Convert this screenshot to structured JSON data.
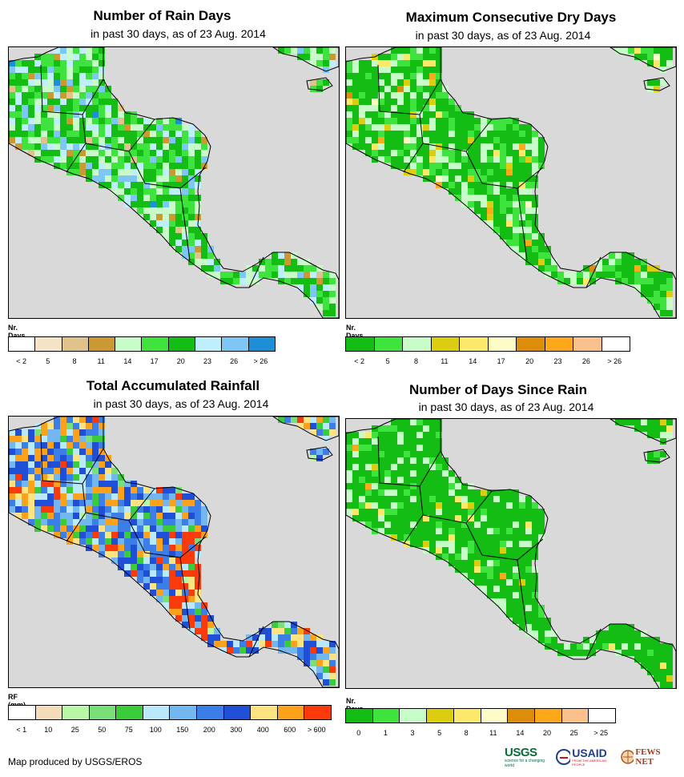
{
  "panels": [
    {
      "title": "Number of Rain Days",
      "subtitle": "in past 30 days, as of 23 Aug. 2014",
      "legend_title": "Nr. Days",
      "legend_colors": [
        "#ffffff",
        "#f5e3c6",
        "#dfc28c",
        "#c99a34",
        "#c7fbc7",
        "#3ee33e",
        "#13bd13",
        "#bfefff",
        "#7ec6f5",
        "#1c8fd6"
      ],
      "ticks": [
        "< 2",
        "5",
        "8",
        "11",
        "14",
        "17",
        "20",
        "23",
        "26",
        "> 26"
      ]
    },
    {
      "title": "Maximum Consecutive Dry Days",
      "subtitle": "in past 30 days, as of 23 Aug. 2014",
      "legend_title": "Nr. Days",
      "legend_colors": [
        "#13bd13",
        "#3ee33e",
        "#c7fbc7",
        "#ddcd10",
        "#fce96a",
        "#fdfbc6",
        "#dc8e0a",
        "#fda71a",
        "#fcc08c",
        "#ffffff"
      ],
      "ticks": [
        "< 2",
        "5",
        "8",
        "11",
        "14",
        "17",
        "20",
        "23",
        "26",
        "> 26"
      ]
    },
    {
      "title": "Total Accumulated Rainfall",
      "subtitle": "in past 30 days, as of 23 Aug. 2014",
      "legend_title": "RF (mm)",
      "legend_colors": [
        "#ffffff",
        "#f5dcb8",
        "#b7f7a6",
        "#78e077",
        "#3bcc3b",
        "#b9e9fb",
        "#72b7f0",
        "#3c7ee8",
        "#1f4fd6",
        "#fde480",
        "#fba21a",
        "#fa3a0a"
      ],
      "ticks": [
        "< 1",
        "10",
        "25",
        "50",
        "75",
        "100",
        "150",
        "200",
        "300",
        "400",
        "600",
        "> 600"
      ]
    },
    {
      "title": "Number of Days Since Rain",
      "subtitle": "in past 30 days, as of 23 Aug. 2014",
      "legend_title": "Nr. Days",
      "legend_colors": [
        "#13bd13",
        "#3ee33e",
        "#c7fbc7",
        "#ddcd10",
        "#fce96a",
        "#fdfbc6",
        "#dc8e0a",
        "#fda71a",
        "#fcc08c",
        "#ffffff"
      ],
      "ticks": [
        "0",
        "1",
        "3",
        "5",
        "8",
        "11",
        "14",
        "20",
        "25",
        "> 25"
      ]
    }
  ],
  "credit": "Map produced by USGS/EROS",
  "logos": {
    "usgs": "USGS",
    "usgs_tagline": "science for a changing world",
    "usaid": "USAID",
    "usaid_tagline": "FROM THE AMERICAN PEOPLE",
    "fews": "FEWS NET"
  },
  "colors": {
    "sea": "#d9d9d9",
    "border": "#000000"
  }
}
